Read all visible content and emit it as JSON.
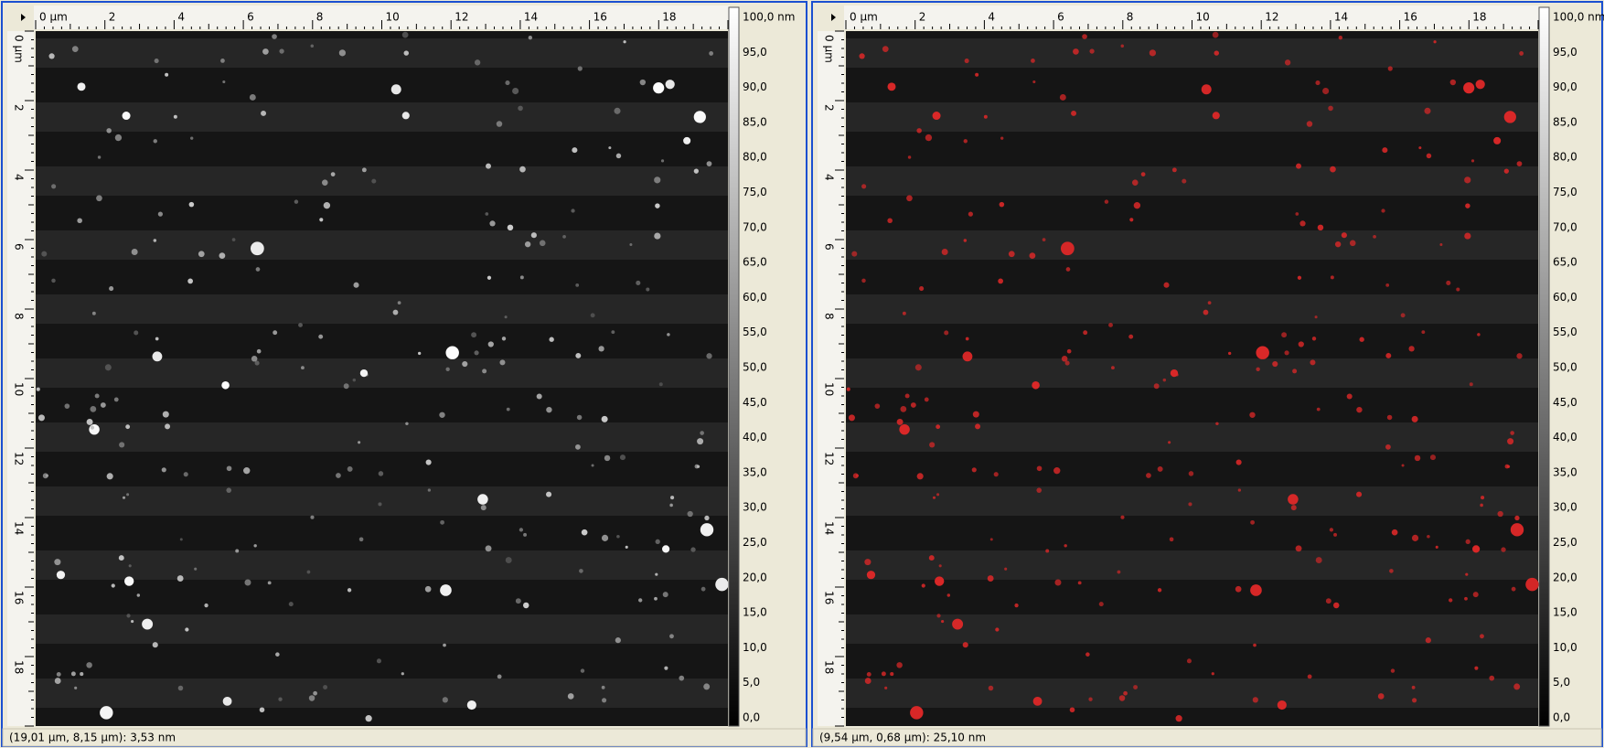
{
  "panels": [
    {
      "top_ruler": [
        "0 µm",
        "2",
        "4",
        "6",
        "8",
        "10",
        "12",
        "14",
        "16",
        "18"
      ],
      "left_ruler": [
        "0 µm",
        "2",
        "4",
        "6",
        "8",
        "10",
        "12",
        "14",
        "16",
        "18"
      ],
      "colorbar_labels": [
        "100,0 nm",
        "95,0",
        "90,0",
        "85,0",
        "80,0",
        "75,0",
        "70,0",
        "65,0",
        "60,0",
        "55,0",
        "50,0",
        "45,0",
        "40,0",
        "35,0",
        "30,0",
        "25,0",
        "20,0",
        "15,0",
        "10,0",
        "5,0",
        "0,0"
      ],
      "status": "(19,01 µm, 8,15 µm): 3,53 nm"
    },
    {
      "top_ruler": [
        "0 µm",
        "2",
        "4",
        "6",
        "8",
        "10",
        "12",
        "14",
        "16",
        "18"
      ],
      "left_ruler": [
        "0 µm",
        "2",
        "4",
        "6",
        "8",
        "10",
        "12",
        "14",
        "16",
        "18"
      ],
      "colorbar_labels": [
        "100,0 nm",
        "95,0",
        "90,0",
        "85,0",
        "80,0",
        "75,0",
        "70,0",
        "65,0",
        "60,0",
        "55,0",
        "50,0",
        "45,0",
        "40,0",
        "35,0",
        "30,0",
        "25,0",
        "20,0",
        "15,0",
        "10,0",
        "5,0",
        "0,0"
      ],
      "status": "(9,54 µm, 0,68 µm): 25,10 nm"
    }
  ]
}
